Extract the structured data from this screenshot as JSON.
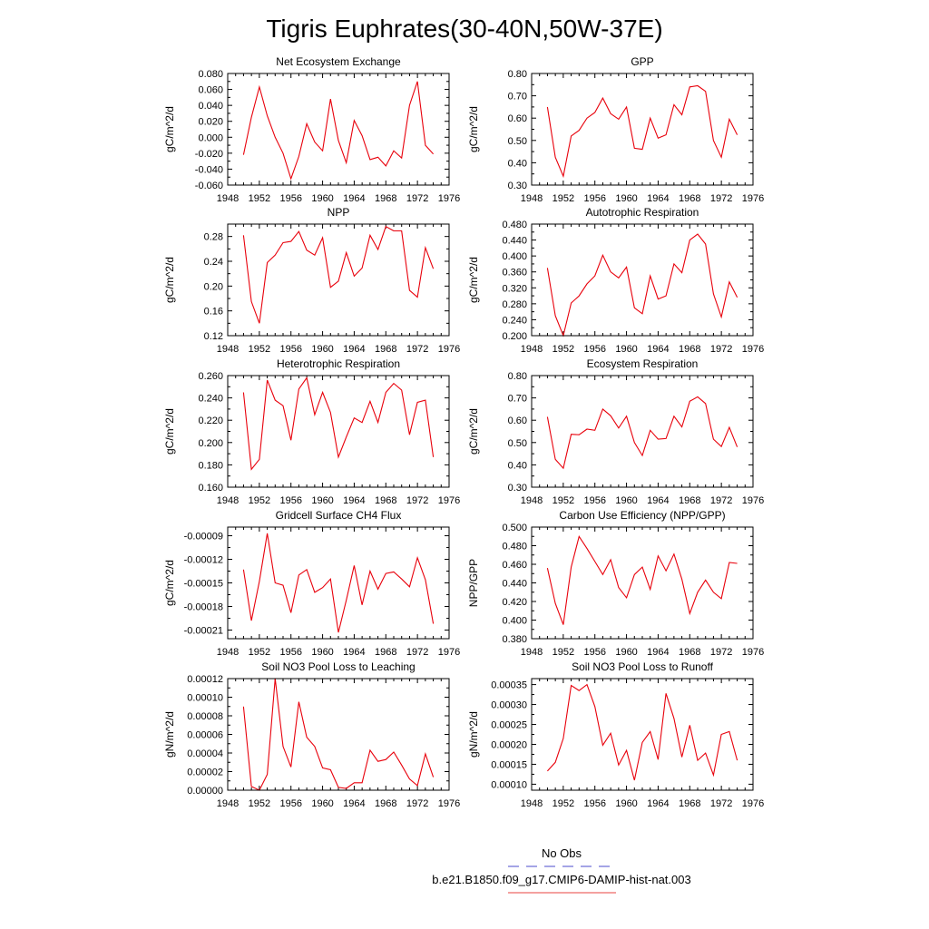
{
  "page": {
    "title": "Tigris Euphrates(30-40N,50W-37E)"
  },
  "legend": {
    "obs_label": "No Obs",
    "obs_color": "#4b4bcc",
    "model_label": "b.e21.B1850.f09_g17.CMIP6-DAMIP-hist-nat.003",
    "model_color": "#e8433f"
  },
  "line_color": "#e8000b",
  "chart_data": [
    {
      "type": "line",
      "title": "Net Ecosystem Exchange",
      "ylabel": "gC/m^2/d",
      "xlim": [
        1948,
        1976
      ],
      "xticks": [
        1948,
        1952,
        1956,
        1960,
        1964,
        1968,
        1972,
        1976
      ],
      "ylim": [
        -0.06,
        0.08
      ],
      "yticks": [
        "-0.060",
        "-0.040",
        "-0.020",
        "0.000",
        "0.020",
        "0.040",
        "0.060",
        "0.080"
      ],
      "x": [
        1950,
        1951,
        1952,
        1953,
        1954,
        1955,
        1956,
        1957,
        1958,
        1959,
        1960,
        1961,
        1962,
        1963,
        1964,
        1965,
        1966,
        1967,
        1968,
        1969,
        1970,
        1971,
        1972,
        1973,
        1974
      ],
      "y": [
        -0.022,
        0.025,
        0.063,
        0.027,
        0.0,
        -0.02,
        -0.052,
        -0.024,
        0.017,
        -0.006,
        -0.017,
        0.048,
        -0.004,
        -0.032,
        0.021,
        0.002,
        -0.028,
        -0.025,
        -0.036,
        -0.017,
        -0.026,
        0.04,
        0.07,
        -0.01,
        -0.021
      ]
    },
    {
      "type": "line",
      "title": "GPP",
      "ylabel": "gC/m^2/d",
      "xlim": [
        1948,
        1976
      ],
      "xticks": [
        1948,
        1952,
        1956,
        1960,
        1964,
        1968,
        1972,
        1976
      ],
      "ylim": [
        0.3,
        0.8
      ],
      "yticks": [
        "0.30",
        "0.40",
        "0.50",
        "0.60",
        "0.70",
        "0.80"
      ],
      "x": [
        1950,
        1951,
        1952,
        1953,
        1954,
        1955,
        1956,
        1957,
        1958,
        1959,
        1960,
        1961,
        1962,
        1963,
        1964,
        1965,
        1966,
        1967,
        1968,
        1969,
        1970,
        1971,
        1972,
        1973,
        1974
      ],
      "y": [
        0.65,
        0.425,
        0.34,
        0.52,
        0.545,
        0.6,
        0.625,
        0.69,
        0.62,
        0.595,
        0.65,
        0.465,
        0.46,
        0.6,
        0.51,
        0.525,
        0.66,
        0.615,
        0.74,
        0.745,
        0.72,
        0.5,
        0.425,
        0.595,
        0.525
      ]
    },
    {
      "type": "line",
      "title": "NPP",
      "ylabel": "gC/m^2/d",
      "xlim": [
        1948,
        1976
      ],
      "xticks": [
        1948,
        1952,
        1956,
        1960,
        1964,
        1968,
        1972,
        1976
      ],
      "ylim": [
        0.12,
        0.3
      ],
      "yticks": [
        "0.12",
        "0.16",
        "0.20",
        "0.24",
        "0.28"
      ],
      "x": [
        1950,
        1951,
        1952,
        1953,
        1954,
        1955,
        1956,
        1957,
        1958,
        1959,
        1960,
        1961,
        1962,
        1963,
        1964,
        1965,
        1966,
        1967,
        1968,
        1969,
        1970,
        1971,
        1972,
        1973,
        1974
      ],
      "y": [
        0.282,
        0.175,
        0.14,
        0.238,
        0.25,
        0.27,
        0.272,
        0.288,
        0.258,
        0.25,
        0.278,
        0.198,
        0.208,
        0.254,
        0.216,
        0.229,
        0.282,
        0.259,
        0.296,
        0.289,
        0.289,
        0.193,
        0.182,
        0.262,
        0.228
      ]
    },
    {
      "type": "line",
      "title": "Autotrophic Respiration",
      "ylabel": "gC/m^2/d",
      "xlim": [
        1948,
        1976
      ],
      "xticks": [
        1948,
        1952,
        1956,
        1960,
        1964,
        1968,
        1972,
        1976
      ],
      "ylim": [
        0.2,
        0.48
      ],
      "yticks": [
        "0.200",
        "0.240",
        "0.280",
        "0.320",
        "0.360",
        "0.400",
        "0.440",
        "0.480"
      ],
      "x": [
        1950,
        1951,
        1952,
        1953,
        1954,
        1955,
        1956,
        1957,
        1958,
        1959,
        1960,
        1961,
        1962,
        1963,
        1964,
        1965,
        1966,
        1967,
        1968,
        1969,
        1970,
        1971,
        1972,
        1973,
        1974
      ],
      "y": [
        0.37,
        0.25,
        0.2,
        0.282,
        0.3,
        0.33,
        0.35,
        0.402,
        0.36,
        0.345,
        0.372,
        0.27,
        0.255,
        0.35,
        0.292,
        0.3,
        0.38,
        0.358,
        0.44,
        0.455,
        0.43,
        0.305,
        0.247,
        0.335,
        0.296
      ]
    },
    {
      "type": "line",
      "title": "Heterotrophic Respiration",
      "ylabel": "gC/m^2/d",
      "xlim": [
        1948,
        1976
      ],
      "xticks": [
        1948,
        1952,
        1956,
        1960,
        1964,
        1968,
        1972,
        1976
      ],
      "ylim": [
        0.16,
        0.26
      ],
      "yticks": [
        "0.160",
        "0.180",
        "0.200",
        "0.220",
        "0.240",
        "0.260"
      ],
      "x": [
        1950,
        1951,
        1952,
        1953,
        1954,
        1955,
        1956,
        1957,
        1958,
        1959,
        1960,
        1961,
        1962,
        1963,
        1964,
        1965,
        1966,
        1967,
        1968,
        1969,
        1970,
        1971,
        1972,
        1973,
        1974
      ],
      "y": [
        0.245,
        0.176,
        0.185,
        0.256,
        0.238,
        0.233,
        0.202,
        0.248,
        0.258,
        0.225,
        0.245,
        0.227,
        0.187,
        0.205,
        0.222,
        0.218,
        0.237,
        0.218,
        0.245,
        0.253,
        0.247,
        0.207,
        0.236,
        0.238,
        0.187
      ]
    },
    {
      "type": "line",
      "title": "Ecosystem Respiration",
      "ylabel": "gC/m^2/d",
      "xlim": [
        1948,
        1976
      ],
      "xticks": [
        1948,
        1952,
        1956,
        1960,
        1964,
        1968,
        1972,
        1976
      ],
      "ylim": [
        0.3,
        0.8
      ],
      "yticks": [
        "0.30",
        "0.40",
        "0.50",
        "0.60",
        "0.70",
        "0.80"
      ],
      "x": [
        1950,
        1951,
        1952,
        1953,
        1954,
        1955,
        1956,
        1957,
        1958,
        1959,
        1960,
        1961,
        1962,
        1963,
        1964,
        1965,
        1966,
        1967,
        1968,
        1969,
        1970,
        1971,
        1972,
        1973,
        1974
      ],
      "y": [
        0.615,
        0.425,
        0.385,
        0.537,
        0.535,
        0.56,
        0.555,
        0.65,
        0.62,
        0.565,
        0.618,
        0.5,
        0.442,
        0.555,
        0.515,
        0.518,
        0.618,
        0.57,
        0.685,
        0.705,
        0.675,
        0.515,
        0.482,
        0.568,
        0.48
      ]
    },
    {
      "type": "line",
      "title": "Gridcell Surface CH4 Flux",
      "ylabel": "gC/m^2/d",
      "xlim": [
        1948,
        1976
      ],
      "xticks": [
        1948,
        1952,
        1956,
        1960,
        1964,
        1968,
        1972,
        1976
      ],
      "ylim": [
        -0.000221,
        -7.9e-05
      ],
      "yticks": [
        "-0.00009",
        "-0.00012",
        "-0.00015",
        "-0.00018",
        "-0.00021"
      ],
      "ytick_values": [
        -9e-05,
        -0.00012,
        -0.00015,
        -0.00018,
        -0.00021
      ],
      "x": [
        1950,
        1951,
        1952,
        1953,
        1954,
        1955,
        1956,
        1957,
        1958,
        1959,
        1960,
        1961,
        1962,
        1963,
        1964,
        1965,
        1966,
        1967,
        1968,
        1969,
        1970,
        1971,
        1972,
        1973,
        1974
      ],
      "y": [
        -0.000133,
        -0.000198,
        -0.000148,
        -8.7e-05,
        -0.00015,
        -0.000153,
        -0.000188,
        -0.00014,
        -0.000133,
        -0.000162,
        -0.000156,
        -0.000145,
        -0.000213,
        -0.000172,
        -0.000128,
        -0.000178,
        -0.000135,
        -0.000158,
        -0.000138,
        -0.000136,
        -0.000145,
        -0.000155,
        -0.000118,
        -0.000146,
        -0.000202
      ]
    },
    {
      "type": "line",
      "title": "Carbon Use Efficiency (NPP/GPP)",
      "ylabel": "NPP/GPP",
      "xlim": [
        1948,
        1976
      ],
      "xticks": [
        1948,
        1952,
        1956,
        1960,
        1964,
        1968,
        1972,
        1976
      ],
      "ylim": [
        0.38,
        0.5
      ],
      "yticks": [
        "0.380",
        "0.400",
        "0.420",
        "0.440",
        "0.460",
        "0.480",
        "0.500"
      ],
      "x": [
        1950,
        1951,
        1952,
        1953,
        1954,
        1955,
        1956,
        1957,
        1958,
        1959,
        1960,
        1961,
        1962,
        1963,
        1964,
        1965,
        1966,
        1967,
        1968,
        1969,
        1970,
        1971,
        1972,
        1973,
        1974
      ],
      "y": [
        0.456,
        0.418,
        0.395,
        0.457,
        0.49,
        0.477,
        0.463,
        0.449,
        0.465,
        0.435,
        0.424,
        0.449,
        0.457,
        0.433,
        0.469,
        0.453,
        0.471,
        0.444,
        0.407,
        0.43,
        0.443,
        0.43,
        0.423,
        0.462,
        0.461
      ]
    },
    {
      "type": "line",
      "title": "Soil NO3 Pool Loss to Leaching",
      "ylabel": "gN/m^2/d",
      "xlim": [
        1948,
        1976
      ],
      "xticks": [
        1948,
        1952,
        1956,
        1960,
        1964,
        1968,
        1972,
        1976
      ],
      "ylim": [
        0,
        0.00012
      ],
      "yticks": [
        "0.00000",
        "0.00002",
        "0.00004",
        "0.00006",
        "0.00008",
        "0.00010",
        "0.00012"
      ],
      "x": [
        1950,
        1951,
        1952,
        1953,
        1954,
        1955,
        1956,
        1957,
        1958,
        1959,
        1960,
        1961,
        1962,
        1963,
        1964,
        1965,
        1966,
        1967,
        1968,
        1969,
        1970,
        1971,
        1972,
        1973,
        1974
      ],
      "y": [
        9e-05,
        4e-06,
        0.0,
        1.7e-05,
        0.00012,
        4.7e-05,
        2.5e-05,
        9.5e-05,
        5.7e-05,
        4.7e-05,
        2.4e-05,
        2.2e-05,
        3e-06,
        2e-06,
        8e-06,
        8e-06,
        4.3e-05,
        3.1e-05,
        3.3e-05,
        4.1e-05,
        2.7e-05,
        1.2e-05,
        5e-06,
        3.9e-05,
        1.4e-05
      ]
    },
    {
      "type": "line",
      "title": "Soil NO3 Pool Loss to Runoff",
      "ylabel": "gN/m^2/d",
      "xlim": [
        1948,
        1976
      ],
      "xticks": [
        1948,
        1952,
        1956,
        1960,
        1964,
        1968,
        1972,
        1976
      ],
      "ylim": [
        8.5e-05,
        0.000365
      ],
      "yticks": [
        "0.00010",
        "0.00015",
        "0.00020",
        "0.00025",
        "0.00030",
        "0.00035"
      ],
      "ytick_values": [
        0.0001,
        0.00015,
        0.0002,
        0.00025,
        0.0003,
        0.00035
      ],
      "x": [
        1950,
        1951,
        1952,
        1953,
        1954,
        1955,
        1956,
        1957,
        1958,
        1959,
        1960,
        1961,
        1962,
        1963,
        1964,
        1965,
        1966,
        1967,
        1968,
        1969,
        1970,
        1971,
        1972,
        1973,
        1974
      ],
      "y": [
        0.000133,
        0.000155,
        0.000215,
        0.000348,
        0.000335,
        0.00035,
        0.000295,
        0.000198,
        0.000228,
        0.000148,
        0.000185,
        0.00011,
        0.000205,
        0.000232,
        0.000162,
        0.000328,
        0.000265,
        0.000168,
        0.000248,
        0.00016,
        0.000178,
        0.000123,
        0.000225,
        0.000232,
        0.00016
      ]
    }
  ]
}
